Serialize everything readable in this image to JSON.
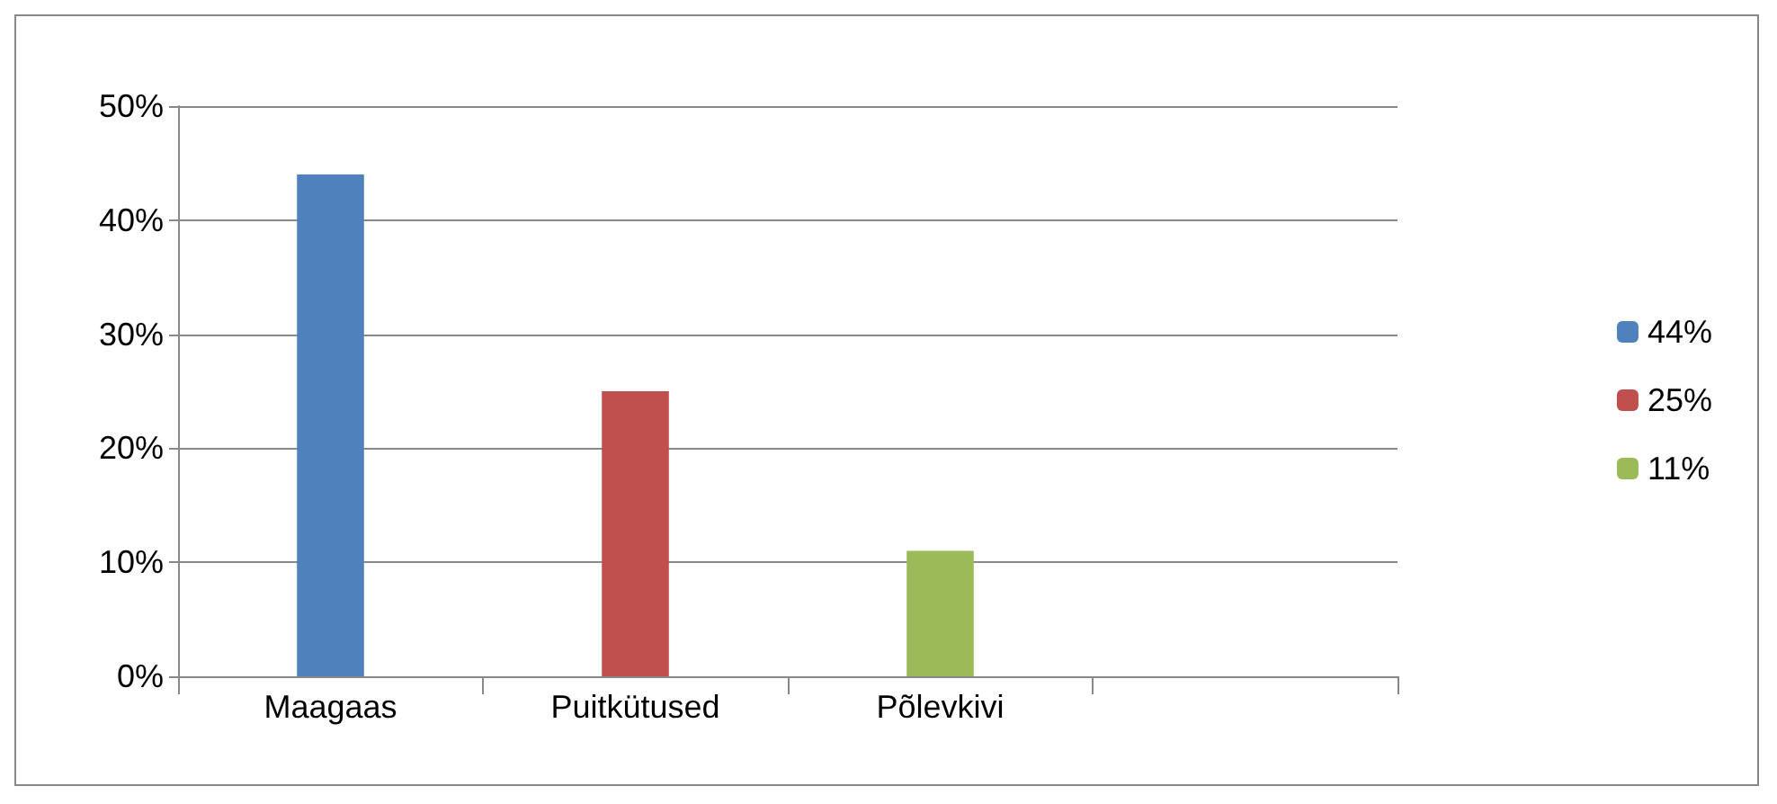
{
  "chart_data": {
    "type": "bar",
    "categories": [
      "Maagaas",
      "Puitkütused",
      "Põlevkivi",
      null
    ],
    "series": [
      {
        "name": "44%",
        "color": "#4f81bd",
        "values": [
          44,
          null,
          null,
          null
        ]
      },
      {
        "name": "25%",
        "color": "#c0504d",
        "values": [
          null,
          25,
          null,
          null
        ]
      },
      {
        "name": "11%",
        "color": "#9bbb59",
        "values": [
          null,
          null,
          11,
          null
        ]
      }
    ],
    "ylim": [
      0,
      50
    ],
    "yticks": [
      {
        "value": 0,
        "label": "0%"
      },
      {
        "value": 10,
        "label": "10%"
      },
      {
        "value": 20,
        "label": "20%"
      },
      {
        "value": 30,
        "label": "30%"
      },
      {
        "value": 40,
        "label": "40%"
      },
      {
        "value": 50,
        "label": "50%"
      }
    ],
    "grid": "y",
    "legend": "right"
  }
}
